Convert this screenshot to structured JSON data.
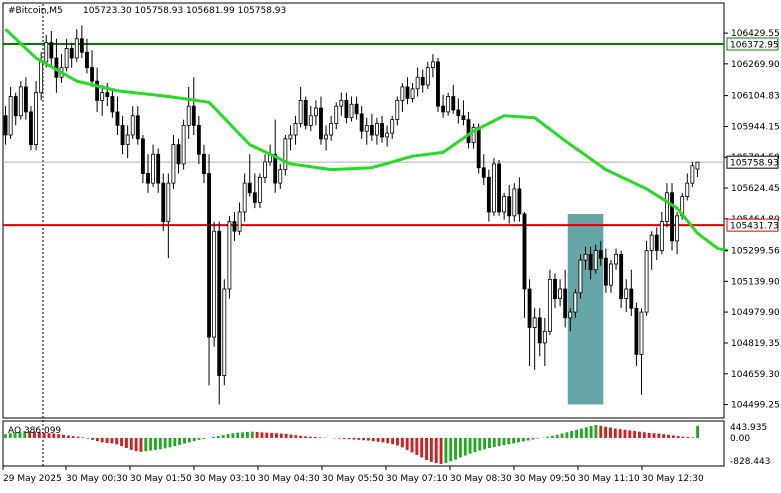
{
  "header": {
    "symbol": "#Bitcoin,M5",
    "ohlc": "105723.30 105758.93 105681.99 105758.93"
  },
  "indicator": {
    "label": "AO 386.099",
    "scale_top": "443.935",
    "scale_zero": "0.00",
    "scale_bottom": "-828.443"
  },
  "price_tags": {
    "green_line": "106372.95",
    "current": "105758.93",
    "red_line": "105431.73"
  },
  "colors": {
    "bull_candle": "#000000",
    "bear_candle": "#000000",
    "moving_average": "#22dd22",
    "resistance_line": "#008000",
    "support_line": "#dd0000",
    "highlight_box": "#4b9696",
    "ao_up": "#22a822",
    "ao_down": "#cc2222"
  },
  "chart_data": {
    "type": "candlestick",
    "symbol": "#Bitcoin",
    "timeframe": "M5",
    "ylim": [
      104440,
      106560
    ],
    "y_ticks": [
      "106429.55",
      "106269.90",
      "106104.83",
      "105944.15",
      "105784.50",
      "105624.45",
      "105464.80",
      "105299.56",
      "105139.90",
      "104979.90",
      "104819.35",
      "104659.30",
      "104499.25"
    ],
    "x_ticks": [
      "29 May 2025",
      "30 May 00:30",
      "30 May 01:50",
      "30 May 03:10",
      "30 May 04:30",
      "30 May 05:50",
      "30 May 07:10",
      "30 May 08:30",
      "30 May 09:50",
      "30 May 11:10",
      "30 May 12:30"
    ],
    "horizontal_lines": [
      {
        "value": 106372.95,
        "color": "green"
      },
      {
        "value": 105431.73,
        "color": "red"
      }
    ],
    "highlight_zone": {
      "from_bar": 111,
      "to_bar": 117,
      "y_from": 104500,
      "y_to": 105490
    },
    "candles": [
      [
        106000,
        106050,
        105850,
        105900
      ],
      [
        105900,
        106150,
        105880,
        106100
      ],
      [
        106100,
        106120,
        105950,
        106000
      ],
      [
        106000,
        106180,
        105980,
        106150
      ],
      [
        106150,
        106200,
        105980,
        106020
      ],
      [
        106020,
        106050,
        105820,
        105850
      ],
      [
        105850,
        106180,
        105820,
        106120
      ],
      [
        106120,
        106330,
        106080,
        106280
      ],
      [
        106280,
        106420,
        106250,
        106380
      ],
      [
        106380,
        106440,
        106250,
        106300
      ],
      [
        106300,
        106400,
        106120,
        106200
      ],
      [
        106200,
        106320,
        106170,
        106250
      ],
      [
        106250,
        106400,
        106230,
        106350
      ],
      [
        106350,
        106380,
        106250,
        106300
      ],
      [
        106300,
        106450,
        106280,
        106400
      ],
      [
        106400,
        106470,
        106300,
        106330
      ],
      [
        106330,
        106400,
        106220,
        106250
      ],
      [
        106250,
        106340,
        106150,
        106180
      ],
      [
        106180,
        106250,
        106020,
        106080
      ],
      [
        106080,
        106160,
        106000,
        106120
      ],
      [
        106120,
        106170,
        106050,
        106100
      ],
      [
        106100,
        106140,
        105990,
        106020
      ],
      [
        106020,
        106100,
        105900,
        105950
      ],
      [
        105950,
        106000,
        105800,
        105850
      ],
      [
        105850,
        105950,
        105780,
        105900
      ],
      [
        105900,
        106050,
        105880,
        106000
      ],
      [
        106000,
        106050,
        105850,
        105880
      ],
      [
        105880,
        105900,
        105650,
        105700
      ],
      [
        105700,
        105800,
        105600,
        105650
      ],
      [
        105650,
        105850,
        105630,
        105800
      ],
      [
        105800,
        105830,
        105600,
        105650
      ],
      [
        105650,
        105700,
        105400,
        105450
      ],
      [
        105450,
        105700,
        105260,
        105650
      ],
      [
        105650,
        105900,
        105620,
        105850
      ],
      [
        105850,
        105880,
        105700,
        105750
      ],
      [
        105750,
        105980,
        105720,
        105950
      ],
      [
        105950,
        106150,
        105880,
        106050
      ],
      [
        106050,
        106200,
        105900,
        105950
      ],
      [
        105950,
        106000,
        105750,
        105800
      ],
      [
        105800,
        105850,
        105650,
        105700
      ],
      [
        105700,
        105800,
        104600,
        104850
      ],
      [
        104850,
        105450,
        104800,
        105400
      ],
      [
        105400,
        105450,
        104500,
        104650
      ],
      [
        104650,
        105150,
        104600,
        105100
      ],
      [
        105100,
        105480,
        105050,
        105450
      ],
      [
        105450,
        105500,
        105350,
        105400
      ],
      [
        105400,
        105550,
        105380,
        105500
      ],
      [
        105500,
        105700,
        105450,
        105650
      ],
      [
        105650,
        105800,
        105580,
        105600
      ],
      [
        105600,
        105700,
        105520,
        105550
      ],
      [
        105550,
        105700,
        105520,
        105680
      ],
      [
        105680,
        105800,
        105650,
        105760
      ],
      [
        105760,
        105850,
        105740,
        105800
      ],
      [
        105800,
        105980,
        105600,
        105650
      ],
      [
        105650,
        105750,
        105620,
        105720
      ],
      [
        105720,
        105900,
        105690,
        105880
      ],
      [
        105880,
        105950,
        105820,
        105900
      ],
      [
        105900,
        106000,
        105850,
        105960
      ],
      [
        105960,
        106150,
        105940,
        106080
      ],
      [
        106080,
        106100,
        105930,
        105950
      ],
      [
        105950,
        106050,
        105920,
        106000
      ],
      [
        106000,
        106080,
        105950,
        106040
      ],
      [
        106040,
        106100,
        105850,
        105880
      ],
      [
        105880,
        105950,
        105820,
        105900
      ],
      [
        105900,
        106000,
        105870,
        105960
      ],
      [
        105960,
        106070,
        105930,
        106050
      ],
      [
        106050,
        106120,
        106000,
        106080
      ],
      [
        106080,
        106120,
        105960,
        105990
      ],
      [
        105990,
        106100,
        105970,
        106060
      ],
      [
        106060,
        106100,
        105980,
        106010
      ],
      [
        106010,
        106050,
        105880,
        105920
      ],
      [
        105920,
        105990,
        105850,
        105950
      ],
      [
        105950,
        106010,
        105870,
        105900
      ],
      [
        105900,
        105990,
        105850,
        105960
      ],
      [
        105960,
        106000,
        105860,
        105890
      ],
      [
        105890,
        105950,
        105840,
        105910
      ],
      [
        105910,
        106000,
        105880,
        105980
      ],
      [
        105980,
        106100,
        105950,
        106080
      ],
      [
        106080,
        106170,
        106020,
        106150
      ],
      [
        106150,
        106200,
        106060,
        106090
      ],
      [
        106090,
        106170,
        106070,
        106140
      ],
      [
        106140,
        106250,
        106100,
        106200
      ],
      [
        106200,
        106240,
        106120,
        106160
      ],
      [
        106160,
        106280,
        106140,
        106250
      ],
      [
        106250,
        106320,
        106200,
        106280
      ],
      [
        106280,
        106300,
        106020,
        106050
      ],
      [
        106050,
        106110,
        105990,
        106020
      ],
      [
        106020,
        106120,
        106000,
        106100
      ],
      [
        106100,
        106160,
        106010,
        106030
      ],
      [
        106030,
        106090,
        105960,
        106000
      ],
      [
        106000,
        106080,
        105950,
        105980
      ],
      [
        105980,
        106020,
        105830,
        105860
      ],
      [
        105860,
        105960,
        105830,
        105940
      ],
      [
        105940,
        105960,
        105700,
        105730
      ],
      [
        105730,
        105800,
        105640,
        105680
      ],
      [
        105680,
        105720,
        105450,
        105500
      ],
      [
        105500,
        105780,
        105480,
        105750
      ],
      [
        105750,
        105770,
        105480,
        105500
      ],
      [
        105500,
        105600,
        105460,
        105580
      ],
      [
        105580,
        105640,
        105440,
        105480
      ],
      [
        105480,
        105650,
        105450,
        105620
      ],
      [
        105620,
        105680,
        105450,
        105490
      ],
      [
        105490,
        105500,
        104950,
        105100
      ],
      [
        105100,
        105150,
        104700,
        104900
      ],
      [
        104900,
        105000,
        104680,
        104950
      ],
      [
        104950,
        105000,
        104750,
        104820
      ],
      [
        104820,
        104950,
        104700,
        104880
      ],
      [
        104880,
        105200,
        104860,
        105150
      ],
      [
        105150,
        105180,
        105000,
        105050
      ],
      [
        105050,
        105150,
        105010,
        105100
      ],
      [
        105100,
        105200,
        104900,
        104950
      ],
      [
        104950,
        105000,
        104880,
        104980
      ],
      [
        104980,
        105100,
        104950,
        105080
      ],
      [
        105080,
        105280,
        105050,
        105250
      ],
      [
        105250,
        105320,
        105200,
        105280
      ],
      [
        105280,
        105320,
        105150,
        105200
      ],
      [
        105200,
        105330,
        105180,
        105300
      ],
      [
        105300,
        105350,
        105220,
        105260
      ],
      [
        105260,
        105310,
        105080,
        105120
      ],
      [
        105120,
        105250,
        105080,
        105230
      ],
      [
        105230,
        105310,
        105200,
        105280
      ],
      [
        105280,
        105300,
        105000,
        105050
      ],
      [
        105050,
        105150,
        104980,
        105100
      ],
      [
        105100,
        105200,
        104960,
        105000
      ],
      [
        105000,
        105030,
        104700,
        104760
      ],
      [
        104760,
        105000,
        104550,
        104980
      ],
      [
        104980,
        105350,
        104960,
        105300
      ],
      [
        105300,
        105400,
        105200,
        105380
      ],
      [
        105380,
        105420,
        105250,
        105300
      ],
      [
        105300,
        105500,
        105280,
        105450
      ],
      [
        105450,
        105650,
        105420,
        105600
      ],
      [
        105600,
        105650,
        105300,
        105350
      ],
      [
        105350,
        105500,
        105280,
        105480
      ],
      [
        105480,
        105600,
        105460,
        105580
      ],
      [
        105580,
        105700,
        105560,
        105650
      ],
      [
        105650,
        105760,
        105630,
        105740
      ],
      [
        105723.3,
        105758.93,
        105681.99,
        105758.93
      ]
    ],
    "moving_average": [
      [
        0,
        106450
      ],
      [
        6,
        106300
      ],
      [
        14,
        106180
      ],
      [
        22,
        106130
      ],
      [
        32,
        106100
      ],
      [
        40,
        106070
      ],
      [
        48,
        105850
      ],
      [
        56,
        105750
      ],
      [
        64,
        105720
      ],
      [
        72,
        105730
      ],
      [
        80,
        105790
      ],
      [
        86,
        105810
      ],
      [
        92,
        105920
      ],
      [
        98,
        106000
      ],
      [
        104,
        105990
      ],
      [
        110,
        105870
      ],
      [
        118,
        105720
      ],
      [
        126,
        105620
      ],
      [
        132,
        105520
      ],
      [
        136,
        105390
      ],
      [
        140,
        105310
      ],
      [
        142,
        105300
      ]
    ],
    "ao": {
      "ylim": [
        -828.443,
        443.935
      ],
      "values": [
        120,
        150,
        180,
        200,
        220,
        210,
        200,
        190,
        170,
        150,
        140,
        120,
        100,
        80,
        60,
        40,
        20,
        -20,
        -60,
        -100,
        -140,
        -160,
        -170,
        -200,
        -260,
        -320,
        -380,
        -420,
        -440,
        -420,
        -400,
        -380,
        -360,
        -330,
        -300,
        -260,
        -220,
        -180,
        -140,
        -100,
        -60,
        -30,
        0,
        30,
        60,
        90,
        120,
        150,
        170,
        180,
        190,
        200,
        190,
        180,
        170,
        160,
        150,
        140,
        130,
        110,
        90,
        70,
        50,
        40,
        30,
        20,
        10,
        0,
        -10,
        -20,
        -30,
        -40,
        -50,
        -60,
        -70,
        -80,
        -100,
        -120,
        -140,
        -170,
        -200,
        -240,
        -300,
        -380,
        -460,
        -540,
        -620,
        -700,
        -760,
        -800,
        -828,
        -790,
        -740,
        -690,
        -620,
        -560,
        -500,
        -450,
        -400,
        -360,
        -320,
        -290,
        -260,
        -230,
        -200,
        -170,
        -140,
        -110,
        -80,
        -50,
        -20,
        10,
        40,
        70,
        100,
        140,
        180,
        220,
        260,
        300,
        340,
        380,
        410,
        386,
        360,
        330,
        300,
        280,
        260,
        240,
        220,
        200,
        180,
        160,
        150,
        140,
        120,
        100,
        80,
        60,
        40,
        30,
        20,
        386
      ]
    }
  }
}
